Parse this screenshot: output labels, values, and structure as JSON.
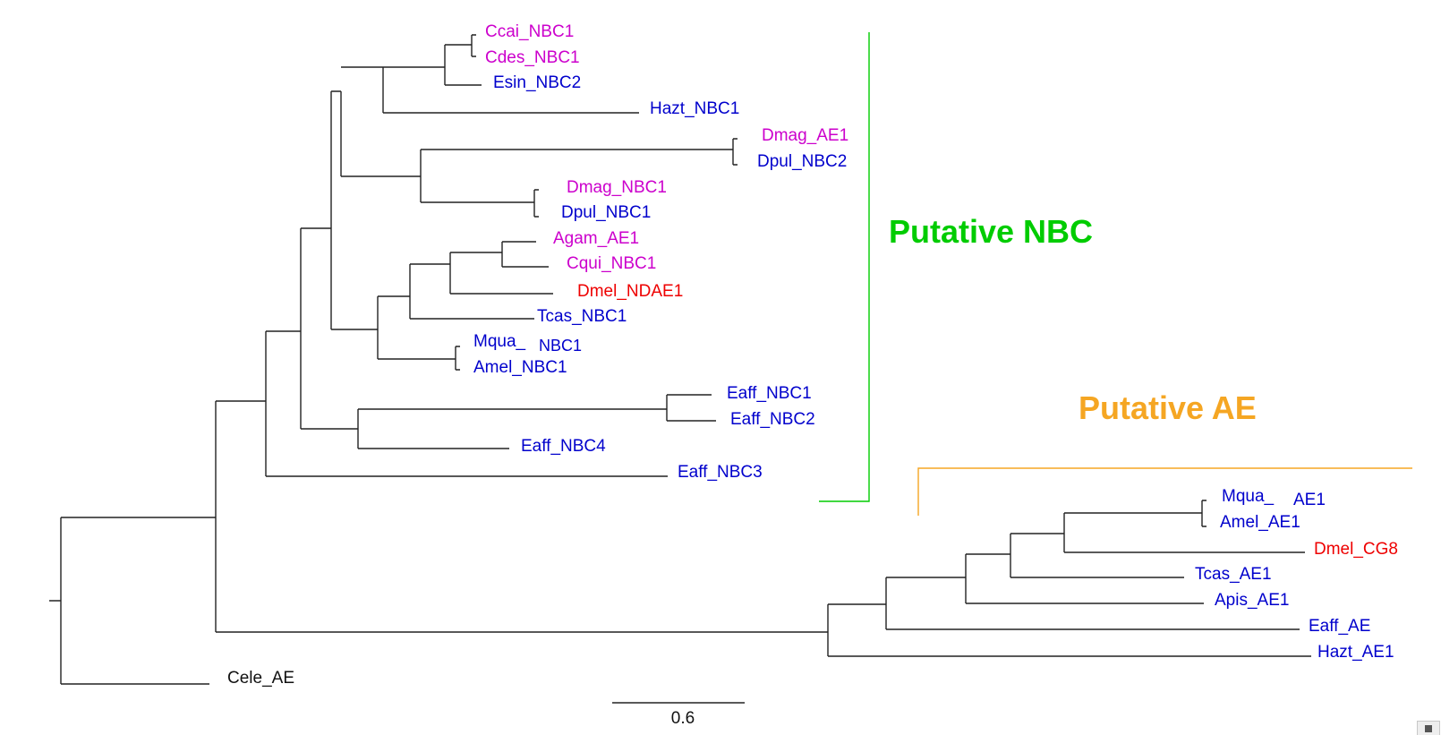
{
  "tree": {
    "colors": {
      "pink": "#cc00cc",
      "blue": "#0000cc",
      "red": "#ee0000",
      "black": "#111111",
      "nbc_bracket": "#00cc00",
      "ae_bracket": "#f5a623"
    },
    "leaves": {
      "ccai": {
        "text": "Ccai_NBC1",
        "color": "pink"
      },
      "cdes": {
        "text": "Cdes_NBC1",
        "color": "pink"
      },
      "esin": {
        "text": "Esin_NBC2",
        "color": "blue"
      },
      "hazt_nbc": {
        "text": "Hazt_NBC1",
        "color": "blue"
      },
      "dmag_ae": {
        "text": "Dmag_AE1",
        "color": "pink"
      },
      "dpul_nbc2": {
        "text": "Dpul_NBC2",
        "color": "blue"
      },
      "dmag_nbc": {
        "text": "Dmag_NBC1",
        "color": "pink"
      },
      "dpul_nbc1": {
        "text": "Dpul_NBC1",
        "color": "blue"
      },
      "agam": {
        "text": "Agam_AE1",
        "color": "pink"
      },
      "cqui": {
        "text": "Cqui_NBC1",
        "color": "pink"
      },
      "dmel_ndae": {
        "text": "Dmel_NDAE1",
        "color": "red"
      },
      "tcas_nbc": {
        "text": "Tcas_NBC1",
        "color": "blue"
      },
      "mqua_nbc_a": {
        "text": "Mqua_",
        "color": "blue"
      },
      "mqua_nbc_b": {
        "text": "NBC1",
        "color": "blue"
      },
      "amel_nbc": {
        "text": "Amel_NBC1",
        "color": "blue"
      },
      "eaff_nbc1": {
        "text": "Eaff_NBC1",
        "color": "blue"
      },
      "eaff_nbc2": {
        "text": "Eaff_NBC2",
        "color": "blue"
      },
      "eaff_nbc4": {
        "text": "Eaff_NBC4",
        "color": "blue"
      },
      "eaff_nbc3": {
        "text": "Eaff_NBC3",
        "color": "blue"
      },
      "mqua_ae_a": {
        "text": "Mqua_",
        "color": "blue"
      },
      "mqua_ae_b": {
        "text": "AE1",
        "color": "blue"
      },
      "amel_ae": {
        "text": "Amel_AE1",
        "color": "blue"
      },
      "dmel_cg8": {
        "text": "Dmel_CG8",
        "color": "red"
      },
      "tcas_ae": {
        "text": "Tcas_AE1",
        "color": "blue"
      },
      "apis_ae": {
        "text": "Apis_AE1",
        "color": "blue"
      },
      "eaff_ae": {
        "text": "Eaff_AE",
        "color": "blue"
      },
      "hazt_ae": {
        "text": "Hazt_AE1",
        "color": "blue"
      },
      "cele_ae": {
        "text": "Cele_AE",
        "color": "black"
      }
    },
    "clades": {
      "nbc": {
        "text": "Putative NBC",
        "color": "nbc_bracket"
      },
      "ae": {
        "text": "Putative AE",
        "color": "ae_bracket"
      }
    },
    "scale_bar": {
      "value": 0.6,
      "label": "0.6"
    }
  }
}
